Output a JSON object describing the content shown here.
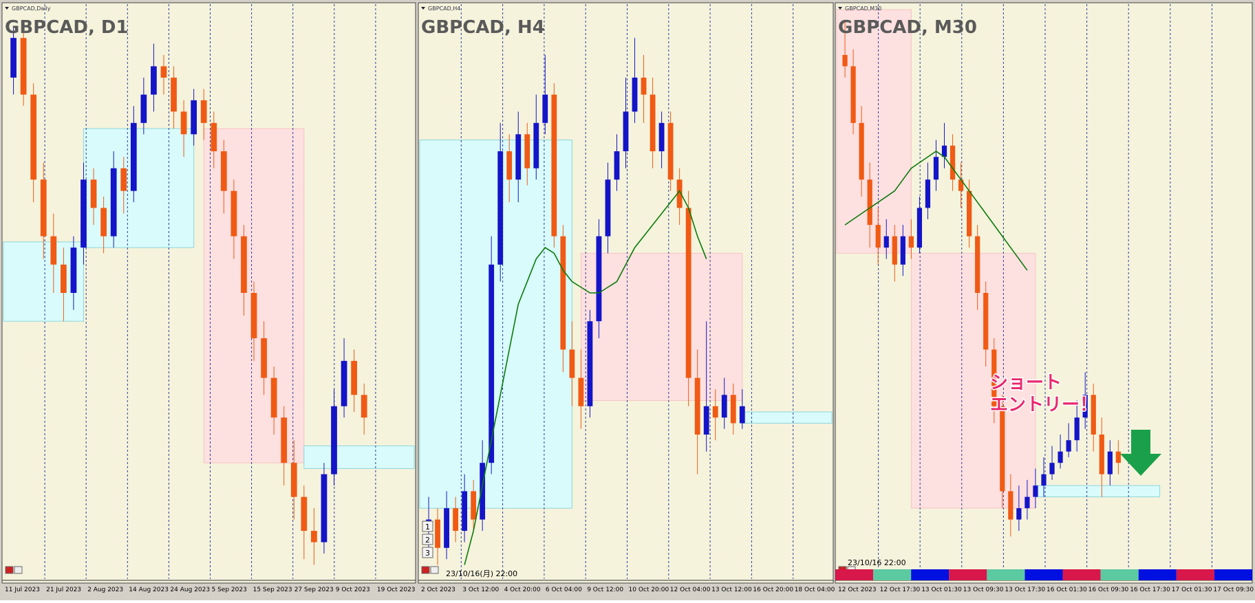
{
  "chart_data": [
    {
      "type": "candlestick",
      "header": "GBPCAD,Daily",
      "title": "GBPCAD, D1",
      "x_labels": [
        "11 Jul 2023",
        "21 Jul 2023",
        "2 Aug 2023",
        "14 Aug 2023",
        "24 Aug 2023",
        "5 Sep 2023",
        "15 Sep 2023",
        "27 Sep 2023",
        "9 Oct 2023",
        "19 Oct 2023"
      ],
      "xlim": [
        -1,
        40
      ],
      "ylim": [
        0,
        100
      ],
      "up_color": "#1414c8",
      "down_color": "#f05a14",
      "open": [
        88,
        95,
        85,
        70,
        60,
        55,
        50,
        58,
        70,
        65,
        60,
        72,
        68,
        80,
        85,
        90,
        88,
        82,
        78,
        84,
        80,
        75,
        68,
        60,
        50,
        42,
        35,
        28,
        20,
        14,
        8,
        6,
        18,
        30,
        38,
        32
      ],
      "high": [
        97,
        98,
        87,
        73,
        64,
        58,
        60,
        73,
        72,
        67,
        75,
        74,
        83,
        88,
        94,
        92,
        90,
        84,
        86,
        86,
        82,
        77,
        70,
        62,
        52,
        45,
        37,
        30,
        24,
        16,
        12,
        20,
        33,
        42,
        40,
        34
      ],
      "low": [
        85,
        83,
        66,
        56,
        50,
        45,
        47,
        55,
        62,
        57,
        58,
        64,
        66,
        78,
        82,
        85,
        79,
        74,
        76,
        77,
        72,
        64,
        56,
        46,
        38,
        32,
        25,
        16,
        10,
        3,
        2,
        4,
        16,
        28,
        29,
        25
      ],
      "close": [
        95,
        85,
        70,
        60,
        55,
        50,
        58,
        70,
        65,
        60,
        72,
        68,
        80,
        85,
        90,
        88,
        82,
        78,
        84,
        80,
        75,
        68,
        60,
        50,
        42,
        35,
        28,
        20,
        14,
        8,
        6,
        18,
        30,
        38,
        32,
        28
      ],
      "zones": [
        {
          "color": "#d9fbfb",
          "start": -1,
          "end": 7,
          "low": 45,
          "high": 59
        },
        {
          "color": "#d9fbfb",
          "start": 7,
          "end": 18,
          "low": 58,
          "high": 79
        },
        {
          "color": "#fde0e0",
          "start": 19,
          "end": 29,
          "low": 20,
          "high": 79
        },
        {
          "color": "#d9fbfb",
          "start": 29,
          "end": 40,
          "low": 19,
          "high": 23
        }
      ]
    },
    {
      "type": "candlestick",
      "header": "GBPCAD,H4",
      "title": "GBPCAD, H4",
      "timestamp": "23/10/16(月) 22:00",
      "buttons": [
        "1",
        "2",
        "3"
      ],
      "x_labels": [
        "2 Oct 2023",
        "3 Oct 12:00",
        "4 Oct 20:00",
        "6 Oct 04:00",
        "9 Oct 12:00",
        "10 Oct 20:00",
        "12 Oct 04:00",
        "13 Oct 12:00",
        "16 Oct 20:00",
        "18 Oct 04:00"
      ],
      "xlim": [
        -1,
        45
      ],
      "ylim": [
        0,
        100
      ],
      "up_color": "#1414c8",
      "down_color": "#f05a14",
      "open": [
        8,
        10,
        5,
        12,
        8,
        15,
        10,
        20,
        55,
        75,
        70,
        78,
        72,
        80,
        85,
        60,
        40,
        35,
        30,
        45,
        60,
        70,
        75,
        82,
        88,
        85,
        75,
        80,
        70,
        65,
        35,
        25,
        30,
        28,
        32,
        27
      ],
      "high": [
        14,
        12,
        15,
        14,
        18,
        17,
        24,
        60,
        80,
        78,
        82,
        80,
        85,
        92,
        87,
        62,
        45,
        40,
        47,
        63,
        73,
        78,
        88,
        95,
        92,
        88,
        82,
        82,
        72,
        68,
        40,
        45,
        33,
        35,
        34,
        33
      ],
      "low": [
        4,
        2,
        3,
        6,
        6,
        8,
        8,
        18,
        52,
        66,
        66,
        69,
        70,
        78,
        58,
        36,
        30,
        26,
        28,
        42,
        57,
        68,
        72,
        80,
        80,
        72,
        72,
        68,
        62,
        30,
        18,
        22,
        24,
        26,
        25,
        26
      ],
      "close": [
        10,
        5,
        12,
        8,
        15,
        10,
        20,
        55,
        75,
        70,
        78,
        72,
        80,
        85,
        60,
        40,
        35,
        30,
        45,
        60,
        70,
        75,
        82,
        88,
        85,
        75,
        80,
        70,
        65,
        35,
        25,
        30,
        28,
        32,
        27,
        30
      ],
      "ma": {
        "color": "#0a7a0a",
        "values": [
          null,
          null,
          null,
          null,
          2,
          8,
          16,
          24,
          32,
          40,
          48,
          52,
          56,
          58,
          57,
          54,
          52,
          51,
          50,
          50,
          51,
          52,
          55,
          58,
          60,
          62,
          64,
          66,
          68,
          65,
          60,
          56,
          null,
          null,
          null,
          null
        ]
      },
      "zones": [
        {
          "color": "#d9fbfb",
          "start": -1,
          "end": 16,
          "low": 12,
          "high": 77
        },
        {
          "color": "#fde0e0",
          "start": 17,
          "end": 35,
          "low": 31,
          "high": 57
        },
        {
          "color": "#d9fbfb",
          "start": 35,
          "end": 45,
          "low": 27,
          "high": 29
        }
      ]
    },
    {
      "type": "candlestick",
      "header": "GBPCAD,M30",
      "title": "GBPCAD, M30",
      "timestamp": "23/10/16 22:00",
      "annotation": [
        "ショート",
        "エントリー！"
      ],
      "annotation_color": "#e8286e",
      "x_labels": [
        "12 Oct 2023",
        "12 Oct 17:30",
        "13 Oct 01:30",
        "13 Oct 09:30",
        "13 Oct 17:30",
        "16 Oct 01:30",
        "16 Oct 09:30",
        "16 Oct 17:30",
        "17 Oct 01:30",
        "17 Oct 09:30"
      ],
      "xlim": [
        -1,
        49
      ],
      "ylim": [
        0,
        100
      ],
      "up_color": "#1414c8",
      "down_color": "#f05a14",
      "open": [
        92,
        90,
        80,
        70,
        62,
        58,
        60,
        55,
        60,
        58,
        65,
        70,
        74,
        76,
        70,
        68,
        60,
        50,
        40,
        30,
        15,
        10,
        12,
        14,
        16,
        18,
        20,
        22,
        24,
        28,
        32,
        25,
        18,
        22
      ],
      "high": [
        98,
        93,
        83,
        73,
        65,
        63,
        62,
        62,
        63,
        67,
        73,
        77,
        80,
        78,
        73,
        70,
        62,
        52,
        42,
        32,
        18,
        16,
        17,
        19,
        21,
        23,
        25,
        27,
        31,
        36,
        34,
        28,
        24,
        24
      ],
      "low": [
        88,
        78,
        67,
        58,
        55,
        56,
        52,
        53,
        56,
        57,
        63,
        68,
        72,
        68,
        65,
        58,
        47,
        37,
        27,
        12,
        7,
        8,
        10,
        12,
        14,
        17,
        19,
        21,
        22,
        26,
        22,
        14,
        16,
        18
      ],
      "close": [
        90,
        80,
        70,
        62,
        58,
        60,
        55,
        60,
        58,
        65,
        70,
        74,
        76,
        70,
        68,
        60,
        50,
        40,
        30,
        15,
        10,
        12,
        14,
        16,
        18,
        20,
        22,
        24,
        28,
        32,
        25,
        18,
        22,
        20
      ],
      "ma": {
        "color": "#0a7a0a",
        "values": [
          62,
          63,
          64,
          65,
          66,
          67,
          68,
          70,
          72,
          73,
          74,
          75,
          74,
          72,
          70,
          68,
          66,
          64,
          62,
          60,
          58,
          56,
          54,
          null,
          null,
          null,
          null,
          null,
          null,
          null,
          null,
          null,
          null,
          null
        ]
      },
      "zones": [
        {
          "color": "#fde0e0",
          "start": -1,
          "end": 8,
          "low": 57,
          "high": 100
        },
        {
          "color": "#fde0e0",
          "start": 8,
          "end": 23,
          "low": 12,
          "high": 57
        },
        {
          "color": "#d9fbfb",
          "start": 23,
          "end": 38,
          "low": 14,
          "high": 16
        }
      ]
    }
  ]
}
